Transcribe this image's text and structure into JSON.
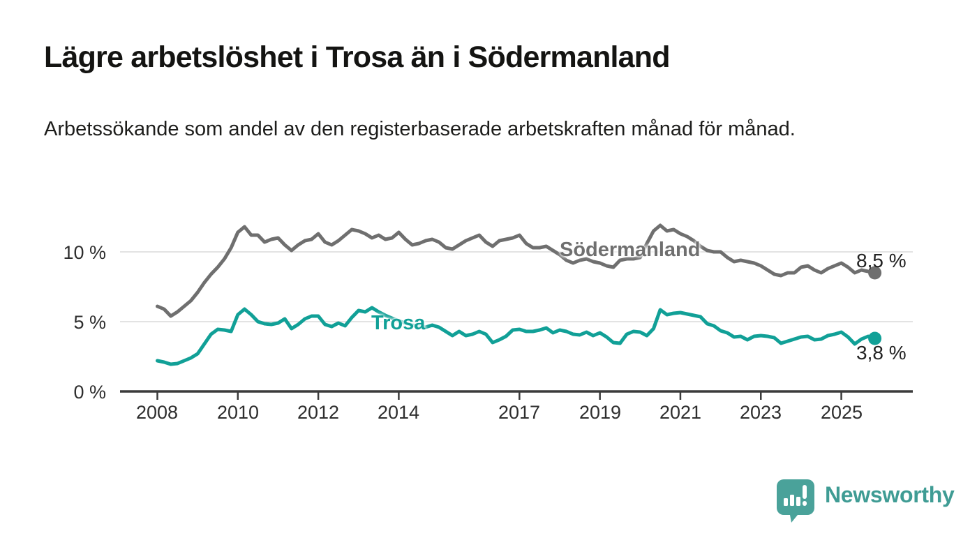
{
  "title": "Lägre arbetslöshet i Trosa än i Södermanland",
  "subtitle": "Arbetssökande som andel av den registerbaserade arbetskraften månad för månad.",
  "branding": {
    "name": "Newsworthy"
  },
  "colors": {
    "trosa": "#11A097",
    "sodermanland": "#6F6F6F",
    "grid": "#DADADA",
    "axis": "#3B3B3B",
    "text": "#1D1D1B",
    "logo": "#4AA29A"
  },
  "chart_data": {
    "type": "line",
    "title": "Lägre arbetslöshet i Trosa än i Södermanland",
    "xlabel": "",
    "ylabel": "Arbetssökande som andel av den registerbaserade arbetskraften",
    "x_unit": "year, monthly observations (sampled every 2 months)",
    "x_start": 2008.0,
    "x_end": 2025.83,
    "x_step": 0.1666667,
    "ylim": [
      0,
      12.5
    ],
    "grid": "horizontal-only",
    "legend": "inline-labels-on-lines",
    "y_ticks": [
      {
        "label": "0 %",
        "value": 0
      },
      {
        "label": "5 %",
        "value": 5
      },
      {
        "label": "10 %",
        "value": 10
      }
    ],
    "x_ticks": [
      {
        "label": "2008",
        "year": 2008
      },
      {
        "label": "2010",
        "year": 2010
      },
      {
        "label": "2012",
        "year": 2012
      },
      {
        "label": "2014",
        "year": 2014
      },
      {
        "label": "2017",
        "year": 2017
      },
      {
        "label": "2019",
        "year": 2019
      },
      {
        "label": "2021",
        "year": 2021
      },
      {
        "label": "2023",
        "year": 2023
      },
      {
        "label": "2025",
        "year": 2025
      }
    ],
    "series": [
      {
        "name": "Södermanland",
        "color": "#6F6F6F",
        "end_label": "8,5 %",
        "end_value": 8.5,
        "values": [
          6.1,
          5.9,
          5.4,
          5.7,
          6.1,
          6.5,
          7.1,
          7.8,
          8.4,
          8.9,
          9.5,
          10.3,
          11.4,
          11.8,
          11.2,
          11.2,
          10.7,
          10.9,
          11.0,
          10.5,
          10.1,
          10.5,
          10.8,
          10.9,
          11.3,
          10.7,
          10.5,
          10.8,
          11.2,
          11.6,
          11.5,
          11.3,
          11.0,
          11.2,
          10.9,
          11.0,
          11.4,
          10.9,
          10.5,
          10.6,
          10.8,
          10.9,
          10.7,
          10.3,
          10.2,
          10.5,
          10.8,
          11.0,
          11.2,
          10.7,
          10.4,
          10.8,
          10.9,
          11.0,
          11.2,
          10.6,
          10.3,
          10.3,
          10.4,
          10.1,
          9.8,
          9.4,
          9.2,
          9.4,
          9.5,
          9.3,
          9.2,
          9.0,
          8.9,
          9.4,
          9.5,
          9.5,
          9.6,
          10.6,
          11.5,
          11.9,
          11.5,
          11.6,
          11.3,
          11.1,
          10.8,
          10.4,
          10.1,
          10.0,
          10.0,
          9.6,
          9.3,
          9.4,
          9.3,
          9.2,
          9.0,
          8.7,
          8.4,
          8.3,
          8.5,
          8.5,
          8.9,
          9.0,
          8.7,
          8.5,
          8.8,
          9.0,
          9.2,
          8.9,
          8.5,
          8.7,
          8.6,
          8.5
        ]
      },
      {
        "name": "Trosa",
        "color": "#11A097",
        "end_label": "3,8 %",
        "end_value": 3.8,
        "values": [
          2.2,
          2.1,
          1.95,
          2.0,
          2.2,
          2.4,
          2.7,
          3.4,
          4.1,
          4.45,
          4.4,
          4.3,
          5.5,
          5.9,
          5.5,
          5.0,
          4.85,
          4.8,
          4.9,
          5.2,
          4.5,
          4.8,
          5.2,
          5.4,
          5.4,
          4.8,
          4.65,
          4.9,
          4.7,
          5.3,
          5.8,
          5.7,
          6.0,
          5.7,
          5.45,
          5.25,
          5.05,
          4.9,
          4.75,
          4.65,
          4.6,
          4.75,
          4.6,
          4.3,
          4.0,
          4.3,
          4.0,
          4.1,
          4.3,
          4.1,
          3.5,
          3.7,
          3.95,
          4.4,
          4.45,
          4.3,
          4.3,
          4.4,
          4.55,
          4.2,
          4.4,
          4.3,
          4.1,
          4.05,
          4.25,
          4.0,
          4.2,
          3.9,
          3.5,
          3.45,
          4.1,
          4.3,
          4.25,
          4.0,
          4.5,
          5.85,
          5.5,
          5.6,
          5.65,
          5.55,
          5.45,
          5.35,
          4.85,
          4.7,
          4.35,
          4.2,
          3.9,
          3.95,
          3.7,
          3.95,
          4.0,
          3.95,
          3.85,
          3.45,
          3.6,
          3.75,
          3.9,
          3.95,
          3.7,
          3.75,
          4.0,
          4.1,
          4.25,
          3.9,
          3.4,
          3.75,
          3.95,
          3.8
        ]
      }
    ]
  }
}
